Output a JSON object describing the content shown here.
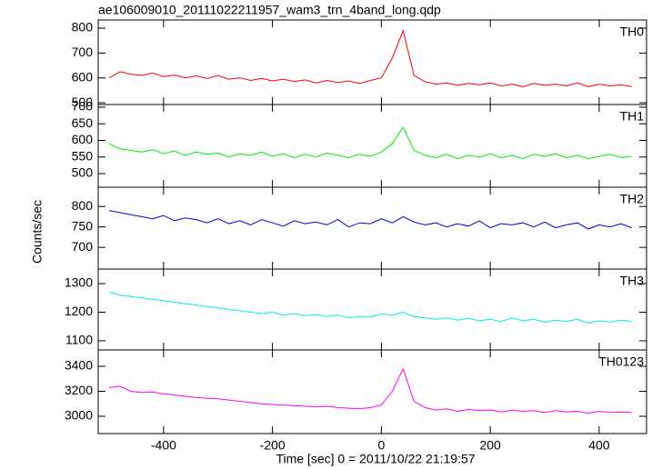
{
  "title": "ae106009010_20111022211957_wam3_trn_4band_long.qdp",
  "x_label": "Time [sec] 0 = 2011/10/22 21:19:57",
  "y_label": "Counts/sec",
  "chart_data": [
    {
      "type": "line",
      "label": "TH0",
      "color": "#ff0000",
      "xlim": [
        -520,
        487
      ],
      "xticks": [
        -400,
        -200,
        0,
        200,
        400
      ],
      "ylim": [
        493,
        833
      ],
      "yticks": [
        500,
        600,
        700,
        800
      ],
      "x": [
        -500,
        -480,
        -460,
        -440,
        -420,
        -400,
        -380,
        -360,
        -340,
        -320,
        -300,
        -280,
        -260,
        -240,
        -220,
        -200,
        -180,
        -160,
        -140,
        -120,
        -100,
        -80,
        -60,
        -40,
        -20,
        0,
        20,
        40,
        60,
        80,
        100,
        120,
        140,
        160,
        180,
        200,
        220,
        240,
        260,
        280,
        300,
        320,
        340,
        360,
        380,
        400,
        420,
        440,
        460
      ],
      "values": [
        600,
        625,
        615,
        610,
        620,
        605,
        612,
        600,
        608,
        598,
        610,
        595,
        600,
        590,
        598,
        588,
        595,
        585,
        592,
        580,
        590,
        582,
        588,
        578,
        590,
        600,
        680,
        790,
        610,
        585,
        575,
        580,
        570,
        578,
        572,
        580,
        568,
        575,
        565,
        578,
        570,
        575,
        568,
        580,
        565,
        575,
        568,
        572,
        565
      ]
    },
    {
      "type": "line",
      "label": "TH1",
      "color": "#00ee00",
      "xlim": [
        -520,
        487
      ],
      "xticks": [
        -400,
        -200,
        0,
        200,
        400
      ],
      "ylim": [
        459,
        708
      ],
      "yticks": [
        500,
        550,
        600,
        650,
        700
      ],
      "x": [
        -500,
        -480,
        -460,
        -440,
        -420,
        -400,
        -380,
        -360,
        -340,
        -320,
        -300,
        -280,
        -260,
        -240,
        -220,
        -200,
        -180,
        -160,
        -140,
        -120,
        -100,
        -80,
        -60,
        -40,
        -20,
        0,
        20,
        40,
        60,
        80,
        100,
        120,
        140,
        160,
        180,
        200,
        220,
        240,
        260,
        280,
        300,
        320,
        340,
        360,
        380,
        400,
        420,
        440,
        460
      ],
      "values": [
        590,
        575,
        570,
        565,
        572,
        560,
        568,
        555,
        565,
        558,
        562,
        550,
        560,
        555,
        565,
        552,
        560,
        548,
        558,
        550,
        562,
        555,
        548,
        558,
        552,
        565,
        590,
        640,
        570,
        555,
        548,
        558,
        545,
        555,
        550,
        560,
        548,
        555,
        545,
        558,
        552,
        560,
        548,
        555,
        545,
        552,
        558,
        548,
        552
      ]
    },
    {
      "type": "line",
      "label": "TH2",
      "color": "#0000dd",
      "xlim": [
        -520,
        487
      ],
      "xticks": [
        -400,
        -200,
        0,
        200,
        400
      ],
      "ylim": [
        647,
        847
      ],
      "yticks": [
        700,
        750,
        800
      ],
      "x": [
        -500,
        -480,
        -460,
        -440,
        -420,
        -400,
        -380,
        -360,
        -340,
        -320,
        -300,
        -280,
        -260,
        -240,
        -220,
        -200,
        -180,
        -160,
        -140,
        -120,
        -100,
        -80,
        -60,
        -40,
        -20,
        0,
        20,
        40,
        60,
        80,
        100,
        120,
        140,
        160,
        180,
        200,
        220,
        240,
        260,
        280,
        300,
        320,
        340,
        360,
        380,
        400,
        420,
        440,
        460
      ],
      "values": [
        790,
        785,
        780,
        775,
        770,
        778,
        765,
        772,
        768,
        760,
        770,
        758,
        765,
        755,
        768,
        760,
        752,
        765,
        758,
        762,
        755,
        768,
        750,
        760,
        758,
        770,
        760,
        775,
        762,
        755,
        760,
        750,
        758,
        752,
        765,
        748,
        758,
        755,
        760,
        750,
        762,
        748,
        755,
        760,
        745,
        755,
        750,
        758,
        748
      ]
    },
    {
      "type": "line",
      "label": "TH3",
      "color": "#00eeee",
      "xlim": [
        -520,
        487
      ],
      "xticks": [
        -400,
        -200,
        0,
        200,
        400
      ],
      "ylim": [
        1068,
        1351
      ],
      "yticks": [
        1100,
        1200,
        1300
      ],
      "x": [
        -500,
        -480,
        -460,
        -440,
        -420,
        -400,
        -380,
        -360,
        -340,
        -320,
        -300,
        -280,
        -260,
        -240,
        -220,
        -200,
        -180,
        -160,
        -140,
        -120,
        -100,
        -80,
        -60,
        -40,
        -20,
        0,
        20,
        40,
        60,
        80,
        100,
        120,
        140,
        160,
        180,
        200,
        220,
        240,
        260,
        280,
        300,
        320,
        340,
        360,
        380,
        400,
        420,
        440,
        460
      ],
      "values": [
        1270,
        1260,
        1255,
        1250,
        1245,
        1240,
        1235,
        1230,
        1225,
        1220,
        1215,
        1210,
        1205,
        1200,
        1195,
        1200,
        1190,
        1195,
        1188,
        1192,
        1185,
        1190,
        1180,
        1185,
        1182,
        1195,
        1190,
        1200,
        1185,
        1180,
        1175,
        1180,
        1172,
        1178,
        1170,
        1175,
        1168,
        1180,
        1170,
        1175,
        1165,
        1172,
        1168,
        1175,
        1162,
        1170,
        1165,
        1172,
        1168
      ]
    },
    {
      "type": "line",
      "label": "TH0123",
      "color": "#ff00ff",
      "xlim": [
        -520,
        487
      ],
      "xticks": [
        -400,
        -200,
        0,
        200,
        400
      ],
      "ylim": [
        2862,
        3531
      ],
      "yticks": [
        3000,
        3200,
        3400
      ],
      "x": [
        -500,
        -480,
        -460,
        -440,
        -420,
        -400,
        -380,
        -360,
        -340,
        -320,
        -300,
        -280,
        -260,
        -240,
        -220,
        -200,
        -180,
        -160,
        -140,
        -120,
        -100,
        -80,
        -60,
        -40,
        -20,
        0,
        20,
        40,
        60,
        80,
        100,
        120,
        140,
        160,
        180,
        200,
        220,
        240,
        260,
        280,
        300,
        320,
        340,
        360,
        380,
        400,
        420,
        440,
        460
      ],
      "values": [
        3230,
        3240,
        3200,
        3190,
        3195,
        3180,
        3170,
        3160,
        3150,
        3145,
        3140,
        3130,
        3120,
        3110,
        3100,
        3095,
        3090,
        3085,
        3080,
        3075,
        3080,
        3070,
        3065,
        3060,
        3070,
        3090,
        3200,
        3380,
        3120,
        3070,
        3050,
        3060,
        3040,
        3055,
        3045,
        3050,
        3035,
        3050,
        3040,
        3045,
        3030,
        3045,
        3035,
        3040,
        3025,
        3040,
        3030,
        3035,
        3030
      ]
    }
  ]
}
